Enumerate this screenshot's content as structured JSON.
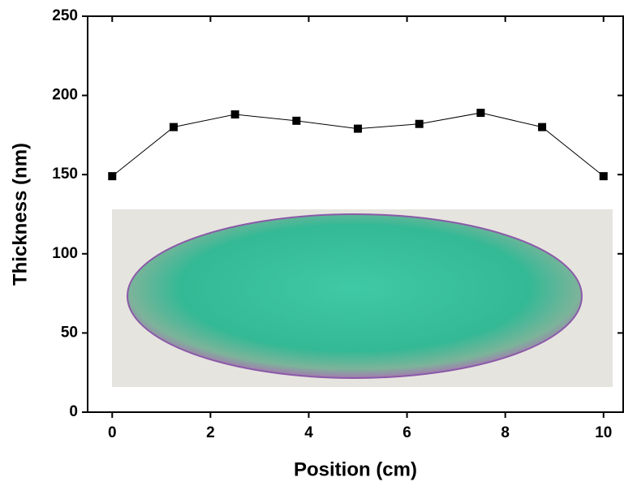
{
  "chart_data": {
    "type": "line",
    "x_label": "Position (cm)",
    "y_label": "Thickness (nm)",
    "x": [
      0,
      1.25,
      2.5,
      3.75,
      5,
      6.25,
      7.5,
      8.75,
      10
    ],
    "series": [
      {
        "color": "#000000",
        "values": [
          149,
          180,
          188,
          184,
          179,
          182,
          189,
          180,
          149
        ]
      }
    ],
    "xlim": [
      -0.5,
      10.4
    ],
    "xticks": [
      0,
      2,
      4,
      6,
      8,
      10
    ],
    "ylim": [
      0,
      250
    ],
    "yticks": [
      0,
      50,
      100,
      150,
      200,
      250
    ],
    "grid": false
  }
}
